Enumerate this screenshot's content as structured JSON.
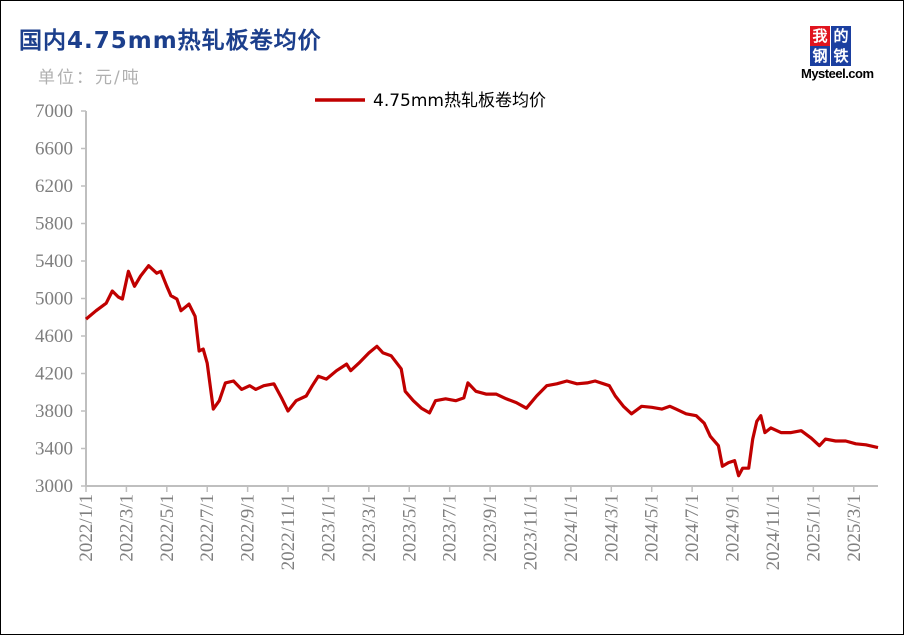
{
  "header": {
    "title": "国内4.75mm热轧板卷均价",
    "unit": "单位：元/吨"
  },
  "logo": {
    "chars": [
      "我",
      "的",
      "钢",
      "铁"
    ],
    "text": "Mysteel.com",
    "colors": [
      "#e0141e",
      "#1b3fa0",
      "#1b3fa0",
      "#1b3fa0"
    ]
  },
  "colors": {
    "line": "#c00000",
    "axis": "#bfbfbf",
    "tick_text": "#7f7f7f"
  },
  "chart_data": {
    "type": "line",
    "title": "国内4.75mm热轧板卷均价",
    "ylabel": "单位：元/吨",
    "xlabel": "",
    "ylim": [
      3000,
      7000
    ],
    "yticks": [
      3000,
      3400,
      3800,
      4200,
      4600,
      5000,
      5400,
      5800,
      6200,
      6600,
      7000
    ],
    "x_unit": "months since 2022/1/1",
    "xlim": [
      0,
      39.2
    ],
    "xticks": [
      0,
      2,
      4,
      6,
      8,
      10,
      12,
      14,
      16,
      18,
      20,
      22,
      24,
      26,
      28,
      30,
      32,
      34,
      36,
      38
    ],
    "xtick_labels": [
      "2022/1/1",
      "2022/3/1",
      "2022/5/1",
      "2022/7/1",
      "2022/9/1",
      "2022/11/1",
      "2023/1/1",
      "2023/3/1",
      "2023/5/1",
      "2023/7/1",
      "2023/9/1",
      "2023/11/1",
      "2024/1/1",
      "2024/3/1",
      "2024/5/1",
      "2024/7/1",
      "2024/9/1",
      "2024/11/1",
      "2025/1/1",
      "2025/3/1"
    ],
    "legend_position": "top-center",
    "grid": false,
    "series": [
      {
        "name": "4.75mm热轧板卷均价",
        "x": [
          0,
          0.5,
          1.0,
          1.3,
          1.6,
          1.8,
          2.1,
          2.4,
          2.7,
          3.1,
          3.5,
          3.7,
          4.0,
          4.2,
          4.5,
          4.7,
          5.1,
          5.4,
          5.6,
          5.8,
          6.0,
          6.3,
          6.6,
          6.9,
          7.3,
          7.7,
          8.1,
          8.4,
          8.8,
          9.3,
          9.7,
          10.0,
          10.4,
          10.9,
          11.2,
          11.5,
          11.9,
          12.4,
          12.9,
          13.1,
          13.5,
          14.0,
          14.4,
          14.7,
          15.1,
          15.6,
          15.8,
          16.2,
          16.6,
          17.0,
          17.3,
          17.8,
          18.3,
          18.7,
          18.9,
          19.3,
          19.8,
          20.3,
          20.8,
          21.3,
          21.8,
          22.3,
          22.8,
          23.3,
          23.8,
          24.3,
          24.8,
          25.2,
          25.9,
          26.2,
          26.6,
          27.0,
          27.5,
          28.0,
          28.5,
          28.9,
          29.2,
          29.7,
          30.2,
          30.6,
          30.9,
          31.3,
          31.5,
          31.8,
          32.1,
          32.3,
          32.5,
          32.8,
          33.0,
          33.2,
          33.4,
          33.6,
          33.9,
          34.4,
          34.9,
          35.4,
          35.9,
          36.3,
          36.6,
          37.1,
          37.6,
          38.1,
          38.6,
          39.2
        ],
        "values": [
          4780,
          4870,
          4950,
          5080,
          5016,
          4995,
          5290,
          5130,
          5240,
          5350,
          5270,
          5290,
          5130,
          5030,
          4995,
          4870,
          4940,
          4810,
          4440,
          4460,
          4310,
          3820,
          3910,
          4100,
          4120,
          4030,
          4070,
          4030,
          4070,
          4090,
          3930,
          3800,
          3910,
          3960,
          4070,
          4170,
          4140,
          4230,
          4300,
          4230,
          4310,
          4420,
          4490,
          4420,
          4390,
          4250,
          4010,
          3910,
          3830,
          3780,
          3910,
          3930,
          3910,
          3940,
          4100,
          4010,
          3980,
          3980,
          3930,
          3890,
          3830,
          3960,
          4070,
          4090,
          4120,
          4090,
          4100,
          4120,
          4070,
          3960,
          3850,
          3770,
          3850,
          3840,
          3820,
          3850,
          3820,
          3770,
          3750,
          3670,
          3530,
          3430,
          3210,
          3250,
          3270,
          3110,
          3190,
          3190,
          3500,
          3690,
          3750,
          3570,
          3620,
          3570,
          3570,
          3590,
          3510,
          3430,
          3500,
          3480,
          3480,
          3450,
          3440,
          3410
        ]
      }
    ]
  }
}
